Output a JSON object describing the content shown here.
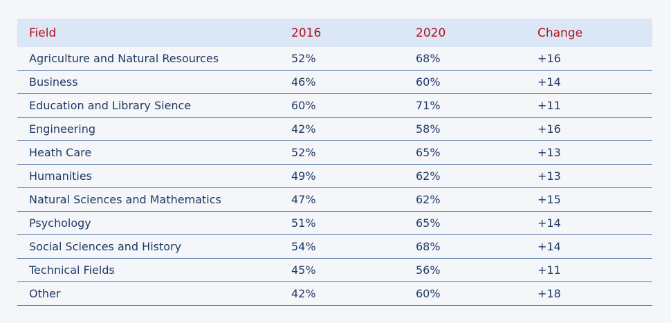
{
  "chart_data": {
    "type": "table",
    "columns": [
      "Field",
      "2016",
      "2020",
      "Change"
    ],
    "rows": [
      {
        "field": "Agriculture and Natural Resources",
        "y2016": "52%",
        "y2020": "68%",
        "change": "+16"
      },
      {
        "field": "Business",
        "y2016": "46%",
        "y2020": "60%",
        "change": "+14"
      },
      {
        "field": "Education and Library Sience",
        "y2016": "60%",
        "y2020": "71%",
        "change": "+11"
      },
      {
        "field": "Engineering",
        "y2016": "42%",
        "y2020": "58%",
        "change": "+16"
      },
      {
        "field": "Heath Care",
        "y2016": "52%",
        "y2020": "65%",
        "change": "+13"
      },
      {
        "field": "Humanities",
        "y2016": "49%",
        "y2020": "62%",
        "change": "+13"
      },
      {
        "field": "Natural Sciences and Mathematics",
        "y2016": "47%",
        "y2020": "62%",
        "change": "+15"
      },
      {
        "field": "Psychology",
        "y2016": "51%",
        "y2020": "65%",
        "change": "+14"
      },
      {
        "field": "Social Sciences and History",
        "y2016": "54%",
        "y2020": "68%",
        "change": "+14"
      },
      {
        "field": "Technical Fields",
        "y2016": "45%",
        "y2020": "56%",
        "change": "+11"
      },
      {
        "field": "Other",
        "y2016": "42%",
        "y2020": "60%",
        "change": "+18"
      }
    ],
    "colors": {
      "header_bg": "#dbe6f6",
      "header_text": "#b5121b",
      "body_text": "#1f3a63",
      "row_rule": "#4a6d9e",
      "page_bg": "#f4f6fa"
    }
  }
}
